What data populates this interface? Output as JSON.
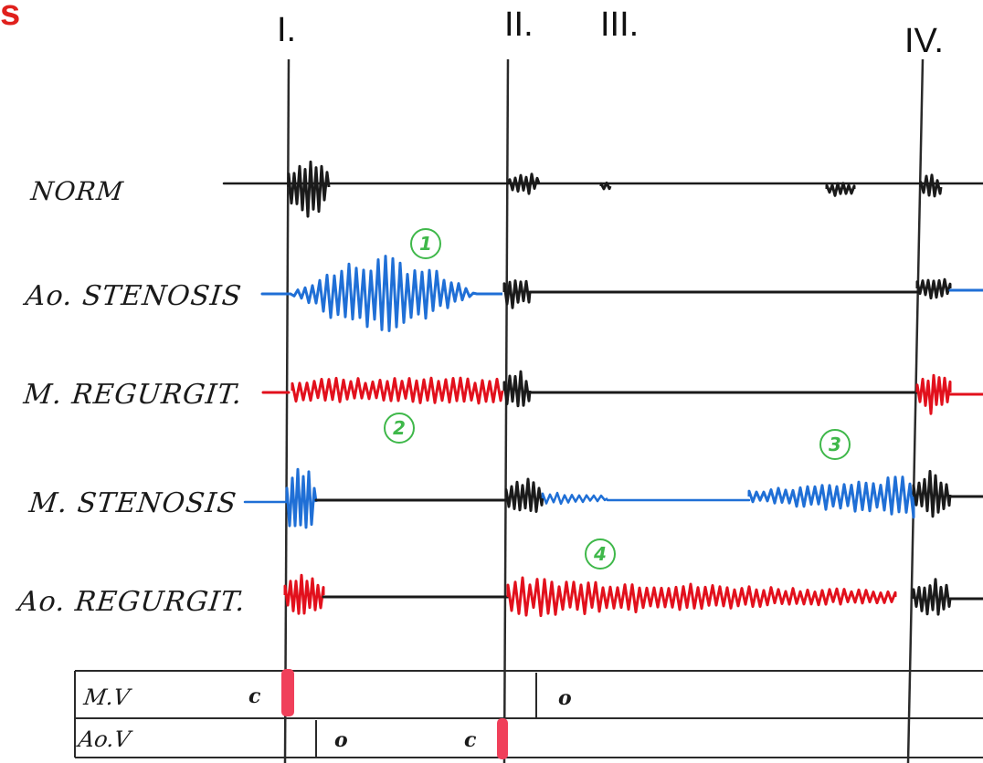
{
  "corner_text": "s",
  "phases": [
    "I.",
    "II.",
    "III.",
    "IV."
  ],
  "rows": [
    {
      "label": "NORM"
    },
    {
      "label": "Ao. STENOSIS",
      "marker": "1"
    },
    {
      "label": "M. REGURGIT.",
      "marker": "2"
    },
    {
      "label": "M. STENOSIS",
      "marker": "3"
    },
    {
      "label": "Ao. REGURGIT.",
      "marker": "4"
    }
  ],
  "valves": [
    {
      "label": "M.V",
      "states": [
        "c",
        "o"
      ]
    },
    {
      "label": "Ao.V",
      "states": [
        "o",
        "c"
      ]
    }
  ],
  "colors": {
    "ink": "#1a1a1a",
    "blue": "#1f6fd6",
    "red": "#e2101c",
    "green": "#3fb84a",
    "marker": "#f0405a",
    "corner": "#e0201c"
  }
}
